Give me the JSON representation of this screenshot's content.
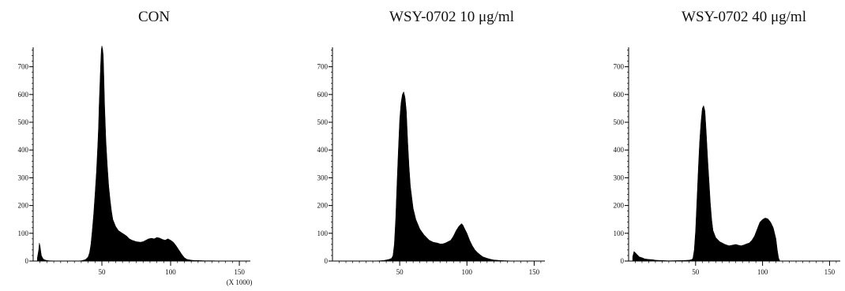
{
  "chart_data": [
    {
      "type": "area",
      "title": "CON",
      "x_unit_note": "(X 1000)",
      "xticks": [
        50,
        100,
        150
      ],
      "yticks": [
        0,
        100,
        200,
        300,
        400,
        500,
        600,
        700
      ],
      "xlim": [
        0,
        158
      ],
      "ylim": [
        0,
        770
      ],
      "series": [
        {
          "x": [
            3,
            4,
            4.5,
            5,
            6,
            7,
            8,
            10,
            12,
            20,
            30,
            35,
            38,
            40,
            41,
            42,
            43,
            44,
            45,
            46,
            47,
            47.5,
            48,
            48.5,
            49,
            49.5,
            50,
            50.5,
            51,
            51.5,
            52,
            53,
            54,
            55,
            56,
            57,
            58,
            60,
            62,
            65,
            68,
            70,
            72,
            75,
            78,
            80,
            82,
            84,
            86,
            88,
            90,
            92,
            94,
            96,
            98,
            100,
            102,
            104,
            106,
            108,
            110,
            112,
            115,
            118,
            120,
            125,
            130,
            140
          ],
          "y": [
            10,
            40,
            65,
            55,
            20,
            10,
            5,
            2,
            1,
            0,
            0,
            1,
            5,
            15,
            30,
            60,
            110,
            170,
            240,
            320,
            420,
            480,
            560,
            630,
            700,
            760,
            775,
            765,
            740,
            660,
            560,
            430,
            340,
            270,
            220,
            180,
            150,
            125,
            110,
            100,
            90,
            80,
            75,
            70,
            68,
            70,
            75,
            80,
            82,
            80,
            85,
            83,
            78,
            75,
            80,
            75,
            68,
            55,
            40,
            25,
            12,
            6,
            3,
            2,
            2,
            1,
            1,
            0
          ]
        }
      ]
    },
    {
      "type": "area",
      "title": "WSY-0702 10 μg/ml",
      "xticks": [
        50,
        100,
        150
      ],
      "yticks": [
        0,
        100,
        200,
        300,
        400,
        500,
        600,
        700
      ],
      "xlim": [
        0,
        158
      ],
      "ylim": [
        0,
        770
      ],
      "series": [
        {
          "x": [
            30,
            35,
            38,
            40,
            42,
            44,
            45,
            46,
            47,
            48,
            49,
            50,
            51,
            52,
            53,
            54,
            55,
            56,
            57,
            58,
            60,
            62,
            65,
            68,
            70,
            72,
            75,
            78,
            80,
            82,
            84,
            86,
            88,
            90,
            92,
            94,
            96,
            97,
            98,
            100,
            102,
            104,
            106,
            108,
            110,
            112,
            115,
            118,
            120,
            125,
            130,
            135
          ],
          "y": [
            0,
            1,
            2,
            4,
            6,
            10,
            20,
            60,
            150,
            280,
            400,
            510,
            570,
            600,
            610,
            590,
            540,
            430,
            340,
            270,
            190,
            150,
            115,
            95,
            85,
            75,
            68,
            65,
            62,
            62,
            65,
            70,
            75,
            90,
            110,
            125,
            135,
            130,
            120,
            100,
            75,
            55,
            40,
            30,
            22,
            15,
            10,
            6,
            4,
            2,
            1,
            0
          ]
        }
      ]
    },
    {
      "type": "area",
      "title": "WSY-0702 40 μg/ml",
      "xticks": [
        50,
        100,
        150
      ],
      "yticks": [
        0,
        100,
        200,
        300,
        400,
        500,
        600,
        700
      ],
      "xlim": [
        0,
        158
      ],
      "ylim": [
        0,
        770
      ],
      "series": [
        {
          "x": [
            3,
            4,
            5,
            6,
            7,
            8,
            10,
            12,
            15,
            18,
            20,
            25,
            30,
            40,
            45,
            47,
            48,
            49,
            50,
            51,
            52,
            53,
            54,
            55,
            56,
            57,
            58,
            59,
            60,
            61,
            62,
            63,
            65,
            68,
            70,
            72,
            75,
            78,
            80,
            82,
            84,
            86,
            88,
            90,
            92,
            94,
            96,
            98,
            100,
            102,
            104,
            106,
            108,
            110,
            111,
            112,
            113
          ],
          "y": [
            15,
            35,
            30,
            25,
            20,
            15,
            12,
            8,
            6,
            5,
            3,
            2,
            1,
            2,
            3,
            5,
            10,
            40,
            110,
            220,
            330,
            430,
            500,
            550,
            560,
            540,
            460,
            370,
            290,
            210,
            150,
            110,
            85,
            70,
            65,
            60,
            55,
            58,
            60,
            57,
            55,
            58,
            62,
            65,
            75,
            90,
            115,
            140,
            150,
            155,
            152,
            140,
            120,
            80,
            40,
            10,
            0
          ]
        }
      ]
    }
  ]
}
